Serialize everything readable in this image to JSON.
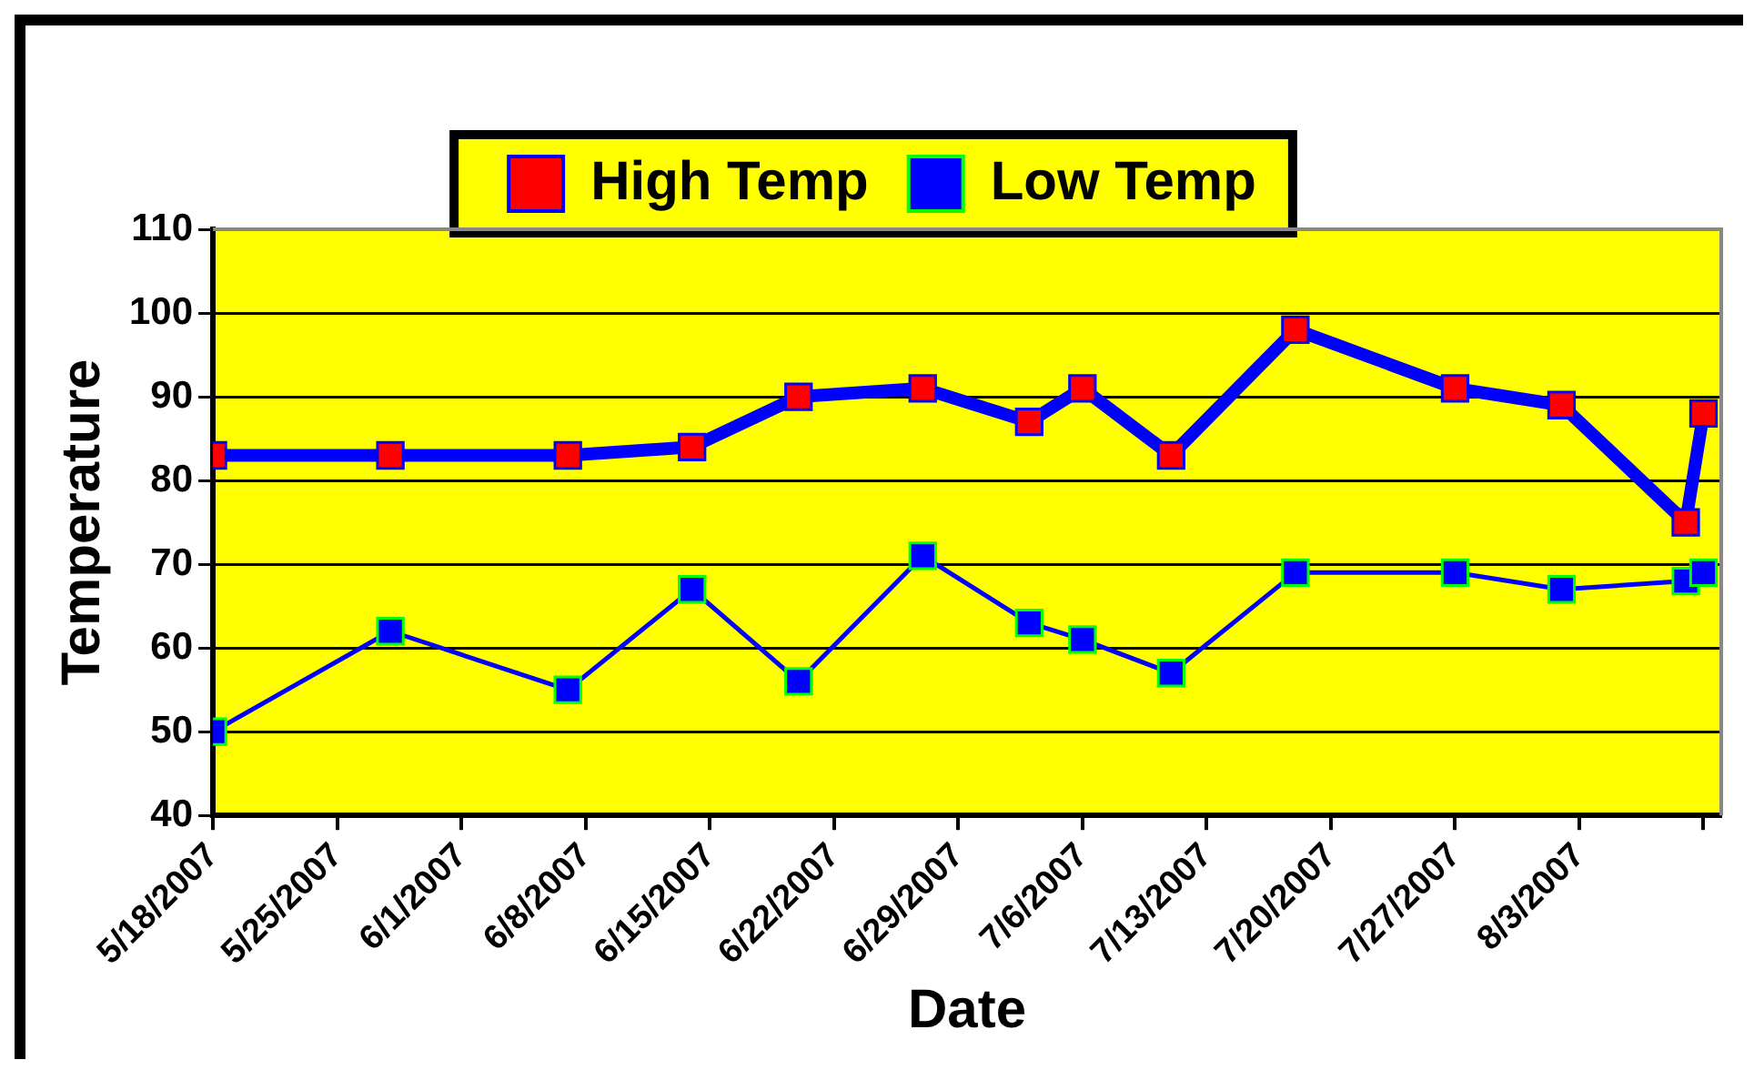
{
  "chart_data": {
    "type": "line",
    "xlabel": "Date",
    "ylabel": "Temperature",
    "x": [
      "2007-05-18",
      "2007-05-28",
      "2007-06-07",
      "2007-06-14",
      "2007-06-20",
      "2007-06-27",
      "2007-07-03",
      "2007-07-06",
      "2007-07-11",
      "2007-07-18",
      "2007-07-27",
      "2007-08-02",
      "2007-08-09",
      "2007-08-10"
    ],
    "series": [
      {
        "name": "High Temp",
        "color": "#ff0000",
        "values": [
          83,
          83,
          83,
          84,
          90,
          91,
          87,
          91,
          83,
          98,
          91,
          89,
          75,
          88
        ]
      },
      {
        "name": "Low Temp",
        "color": "#0000ff",
        "values": [
          50,
          62,
          55,
          67,
          56,
          71,
          63,
          61,
          57,
          69,
          69,
          67,
          68,
          69
        ]
      }
    ],
    "xlim": [
      "2007-05-18",
      "2007-08-11"
    ],
    "xticks": [
      {
        "value": "2007-05-18",
        "label": "5/18/2007"
      },
      {
        "value": "2007-05-25",
        "label": "5/25/2007"
      },
      {
        "value": "2007-06-01",
        "label": "6/1/2007"
      },
      {
        "value": "2007-06-08",
        "label": "6/8/2007"
      },
      {
        "value": "2007-06-15",
        "label": "6/15/2007"
      },
      {
        "value": "2007-06-22",
        "label": "6/22/2007"
      },
      {
        "value": "2007-06-29",
        "label": "6/29/2007"
      },
      {
        "value": "2007-07-06",
        "label": "7/6/2007"
      },
      {
        "value": "2007-07-13",
        "label": "7/13/2007"
      },
      {
        "value": "2007-07-20",
        "label": "7/20/2007"
      },
      {
        "value": "2007-07-27",
        "label": "7/27/2007"
      },
      {
        "value": "2007-08-03",
        "label": "8/3/2007"
      },
      {
        "value": "2007-08-10",
        "label": null
      }
    ],
    "ylim": [
      40,
      110
    ],
    "yticks": [
      40,
      50,
      60,
      70,
      80,
      90,
      100,
      110
    ],
    "grid": "y",
    "legend": "top",
    "marker": "square",
    "line_style": "solid"
  }
}
